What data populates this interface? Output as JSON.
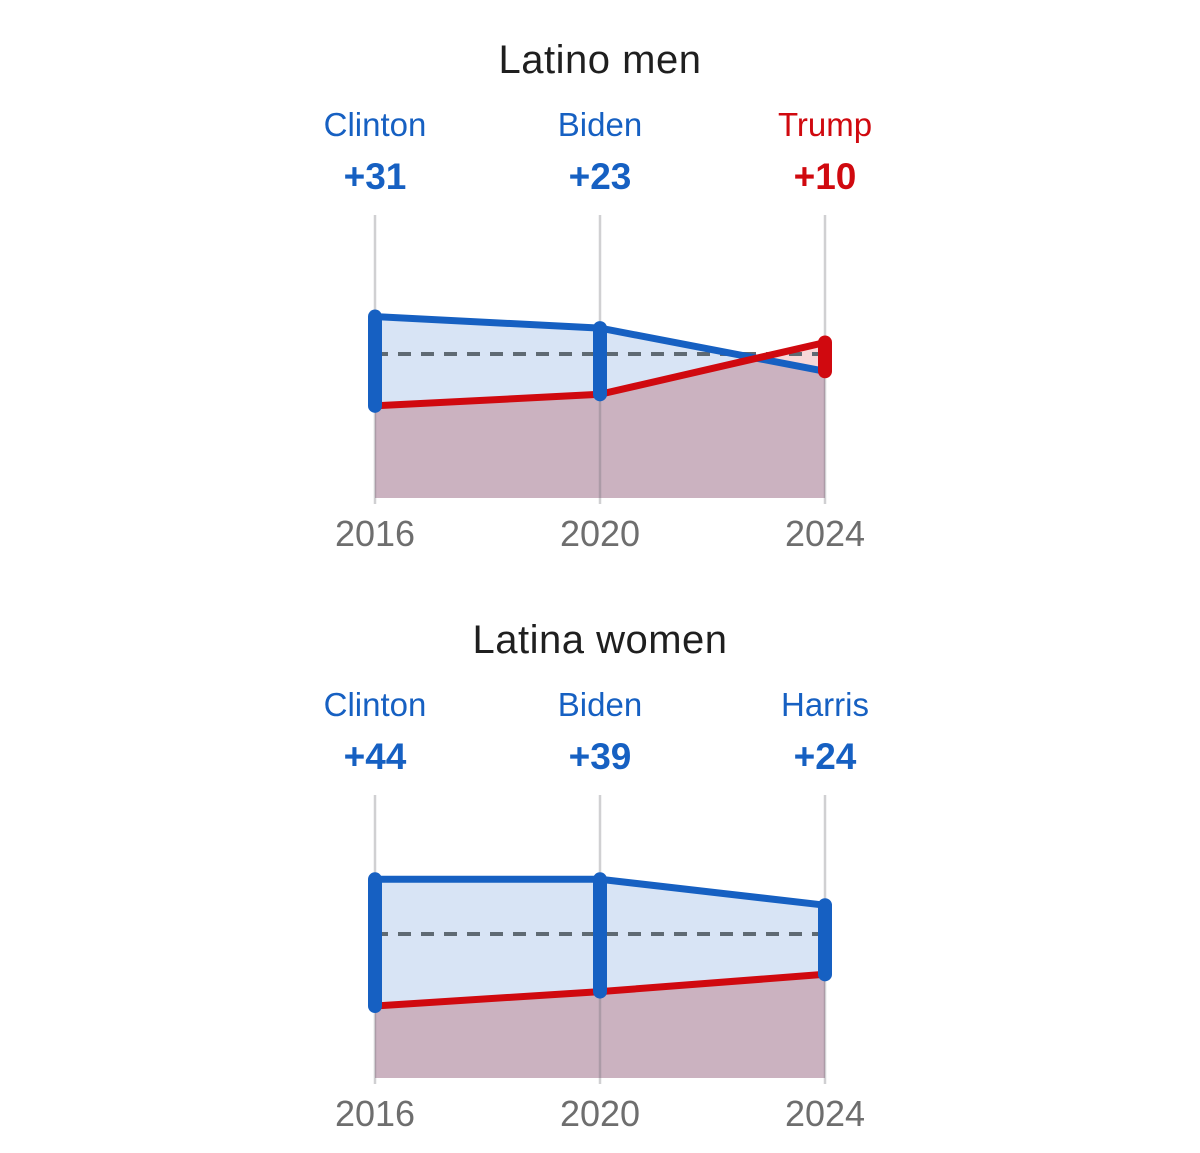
{
  "colors": {
    "dem": "#1660c2",
    "rep": "#d0090f",
    "dem_fill": "rgba(22,96,194,0.17)",
    "rep_fill": "rgba(208,9,15,0.16)",
    "runner_up_fill": "rgba(139,84,115,0.45)",
    "grid": "rgba(108,108,116,0.32)",
    "reference_line": "#5f6a73",
    "title_text": "#1f1f1f",
    "axis_text": "#6e6e6e"
  },
  "chart_data": [
    {
      "type": "area",
      "title": "Latino men",
      "x": [
        2016,
        2020,
        2024
      ],
      "x_tick_labels": [
        "2016",
        "2020",
        "2024"
      ],
      "ylim": [
        0,
        100
      ],
      "reference_line_value": 50,
      "grid": "vertical-only",
      "legend": "none",
      "series": [
        {
          "name": "Democratic candidate",
          "party": "dem",
          "values": [
            63,
            59,
            44
          ]
        },
        {
          "name": "Republican candidate",
          "party": "rep",
          "values": [
            32,
            36,
            54
          ]
        }
      ],
      "annotations": [
        {
          "x": 2016,
          "candidate": "Clinton",
          "margin_label": "+31",
          "party": "dem"
        },
        {
          "x": 2020,
          "candidate": "Biden",
          "margin_label": "+23",
          "party": "dem"
        },
        {
          "x": 2024,
          "candidate": "Trump",
          "margin_label": "+10",
          "party": "rep"
        }
      ]
    },
    {
      "type": "area",
      "title": "Latina women",
      "x": [
        2016,
        2020,
        2024
      ],
      "x_tick_labels": [
        "2016",
        "2020",
        "2024"
      ],
      "ylim": [
        0,
        100
      ],
      "reference_line_value": 50,
      "grid": "vertical-only",
      "legend": "none",
      "series": [
        {
          "name": "Democratic candidate",
          "party": "dem",
          "values": [
            69,
            69,
            60
          ]
        },
        {
          "name": "Republican candidate",
          "party": "rep",
          "values": [
            25,
            30,
            36
          ]
        }
      ],
      "annotations": [
        {
          "x": 2016,
          "candidate": "Clinton",
          "margin_label": "+44",
          "party": "dem"
        },
        {
          "x": 2020,
          "candidate": "Biden",
          "margin_label": "+39",
          "party": "dem"
        },
        {
          "x": 2024,
          "candidate": "Harris",
          "margin_label": "+24",
          "party": "dem"
        }
      ]
    }
  ]
}
